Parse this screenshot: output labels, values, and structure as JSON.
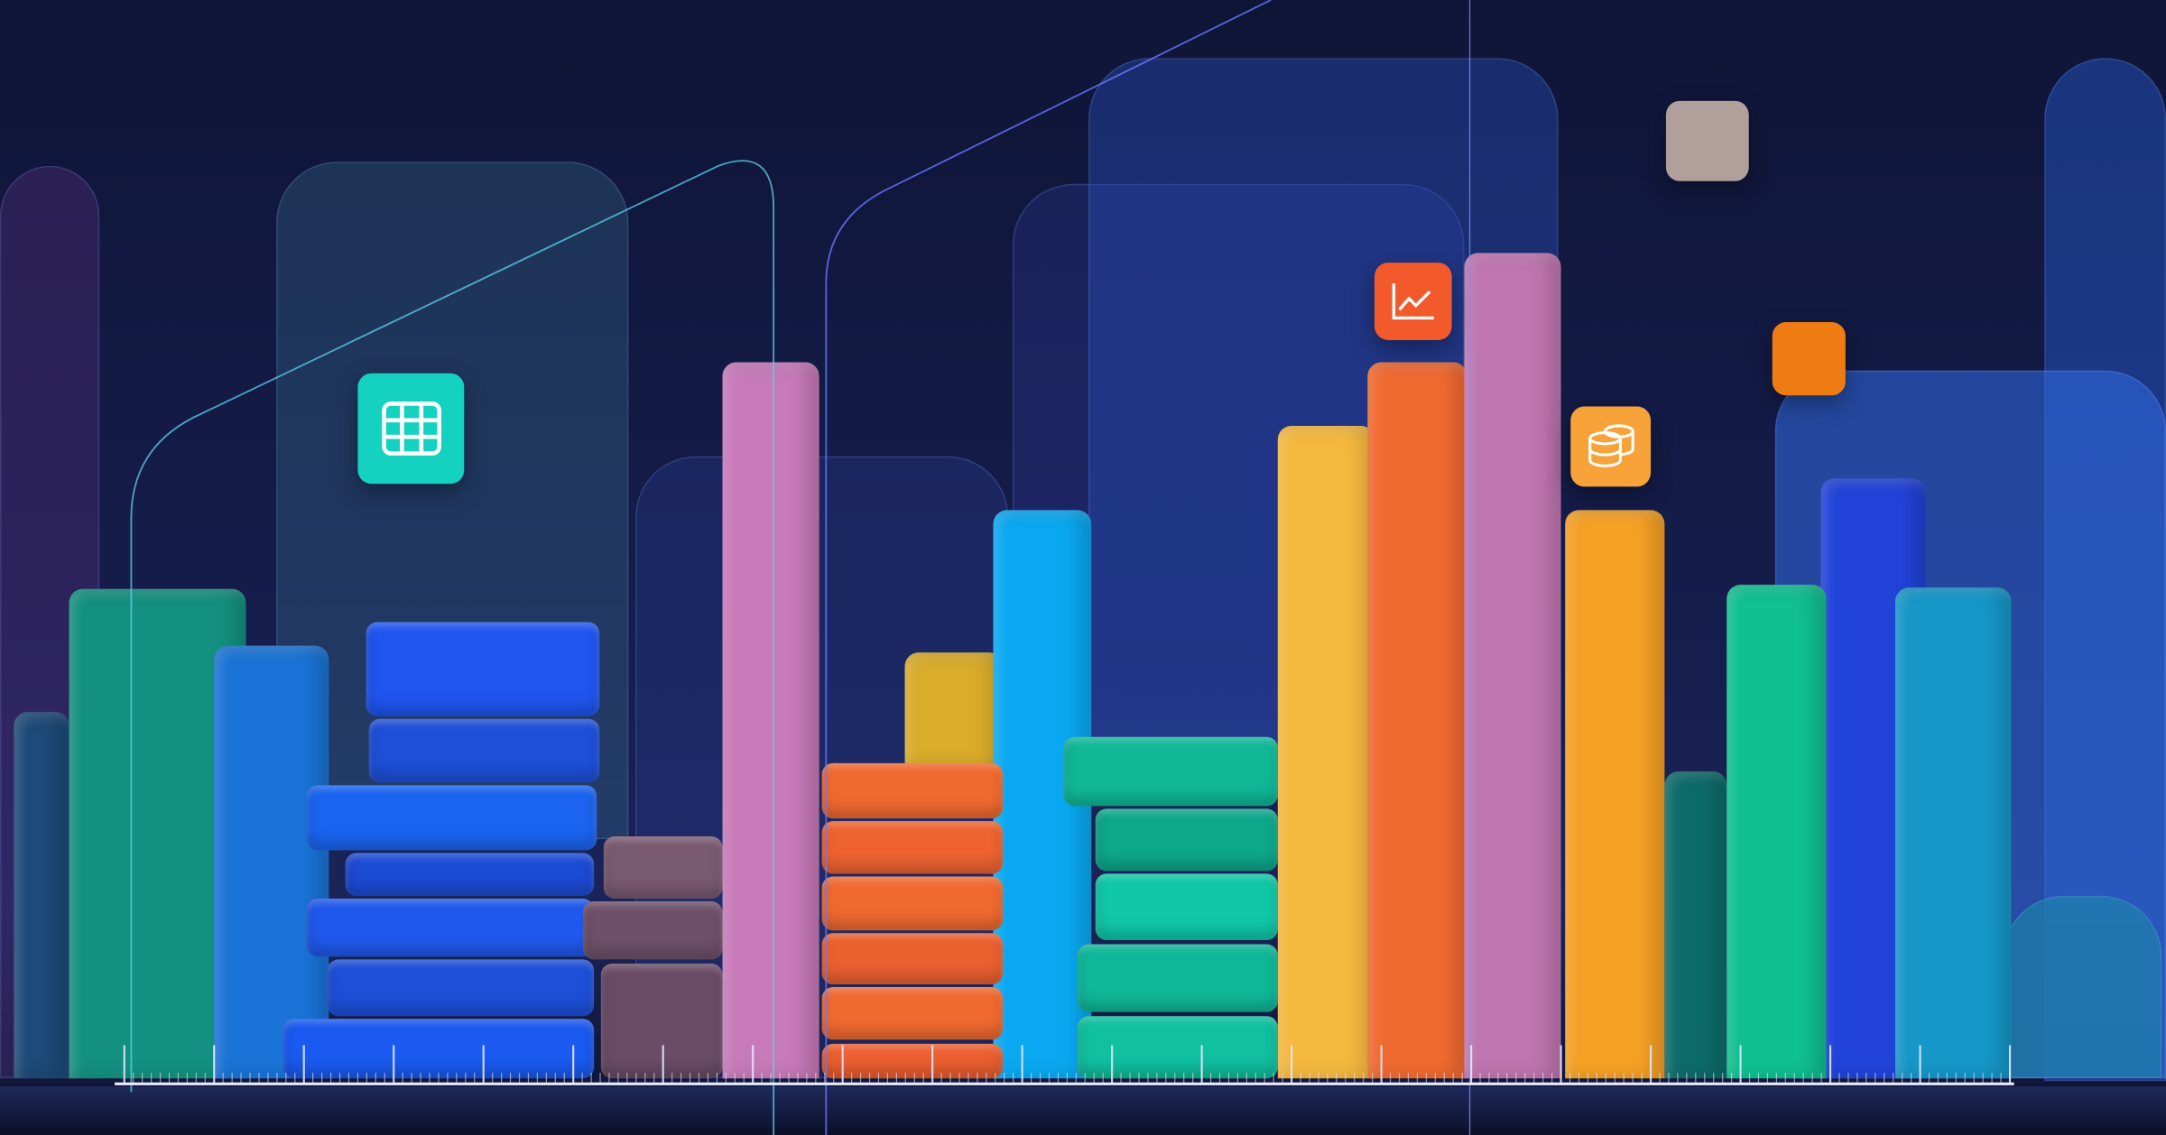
{
  "palette": {
    "background": "#131a45",
    "teal": "#13907f",
    "blue": "#1f55f0",
    "pink": "#c77ab8",
    "orange": "#f06a30",
    "yellow": "#f5b93f",
    "cyan": "#0aa8f0",
    "green": "#10c090"
  },
  "icons": {
    "grid_tile": "table-grid-icon",
    "chart_tile": "line-chart-icon",
    "database_tile": "database-stack-icon",
    "blank_tile_beige": "blank-tile",
    "blank_tile_orange": "blank-tile"
  }
}
